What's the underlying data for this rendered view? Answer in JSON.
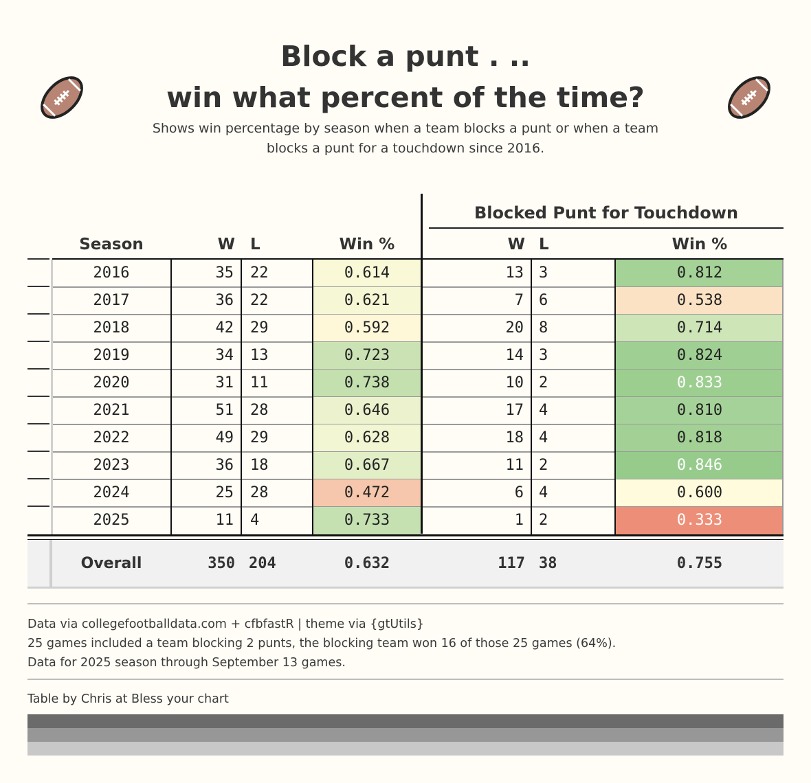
{
  "header": {
    "title_line1": "Block a punt . ..",
    "title_line2": "win what percent of the time?",
    "subtitle_line1": "Shows win percentage by season when a team blocks a punt or when a team",
    "subtitle_line2": "blocks a punt for a touchdown since 2016.",
    "icon": "american-football-icon"
  },
  "chart_data": {
    "type": "table",
    "spanner": "Blocked Punt for Touchdown",
    "columns": [
      "Season",
      "W",
      "L",
      "Win %",
      "W",
      "L",
      "Win %"
    ],
    "rows": [
      {
        "season": "2016",
        "w": "35",
        "l": "22",
        "pct": "0.614",
        "td_w": "13",
        "td_l": "3",
        "td_pct": "0.812"
      },
      {
        "season": "2017",
        "w": "36",
        "l": "22",
        "pct": "0.621",
        "td_w": "7",
        "td_l": "6",
        "td_pct": "0.538"
      },
      {
        "season": "2018",
        "w": "42",
        "l": "29",
        "pct": "0.592",
        "td_w": "20",
        "td_l": "8",
        "td_pct": "0.714"
      },
      {
        "season": "2019",
        "w": "34",
        "l": "13",
        "pct": "0.723",
        "td_w": "14",
        "td_l": "3",
        "td_pct": "0.824"
      },
      {
        "season": "2020",
        "w": "31",
        "l": "11",
        "pct": "0.738",
        "td_w": "10",
        "td_l": "2",
        "td_pct": "0.833"
      },
      {
        "season": "2021",
        "w": "51",
        "l": "28",
        "pct": "0.646",
        "td_w": "17",
        "td_l": "4",
        "td_pct": "0.810"
      },
      {
        "season": "2022",
        "w": "49",
        "l": "29",
        "pct": "0.628",
        "td_w": "18",
        "td_l": "4",
        "td_pct": "0.818"
      },
      {
        "season": "2023",
        "w": "36",
        "l": "18",
        "pct": "0.667",
        "td_w": "11",
        "td_l": "2",
        "td_pct": "0.846"
      },
      {
        "season": "2024",
        "w": "25",
        "l": "28",
        "pct": "0.472",
        "td_w": "6",
        "td_l": "4",
        "td_pct": "0.600"
      },
      {
        "season": "2025",
        "w": "11",
        "l": "4",
        "pct": "0.733",
        "td_w": "1",
        "td_l": "2",
        "td_pct": "0.333"
      }
    ],
    "summary": {
      "label": "Overall",
      "w": "350",
      "l": "204",
      "pct": "0.632",
      "td_w": "117",
      "td_l": "38",
      "td_pct": "0.755"
    },
    "color_scale": {
      "low": "#ed8f78",
      "mid": "#fffbdc",
      "high": "#96cb8c"
    }
  },
  "footer": {
    "source_line1": "Data via collegefootballdata.com + cfbfastR | theme via {gtUtils}",
    "source_line2": "25 games included a team blocking 2 punts, the blocking team won 16 of those 25 games (64%).",
    "source_line3": "Data for 2025 season through September 13 games.",
    "credit": "Table by Chris at Bless your chart",
    "bar_colors": [
      "#6b6b6b",
      "#979797",
      "#c8c8c8"
    ]
  }
}
